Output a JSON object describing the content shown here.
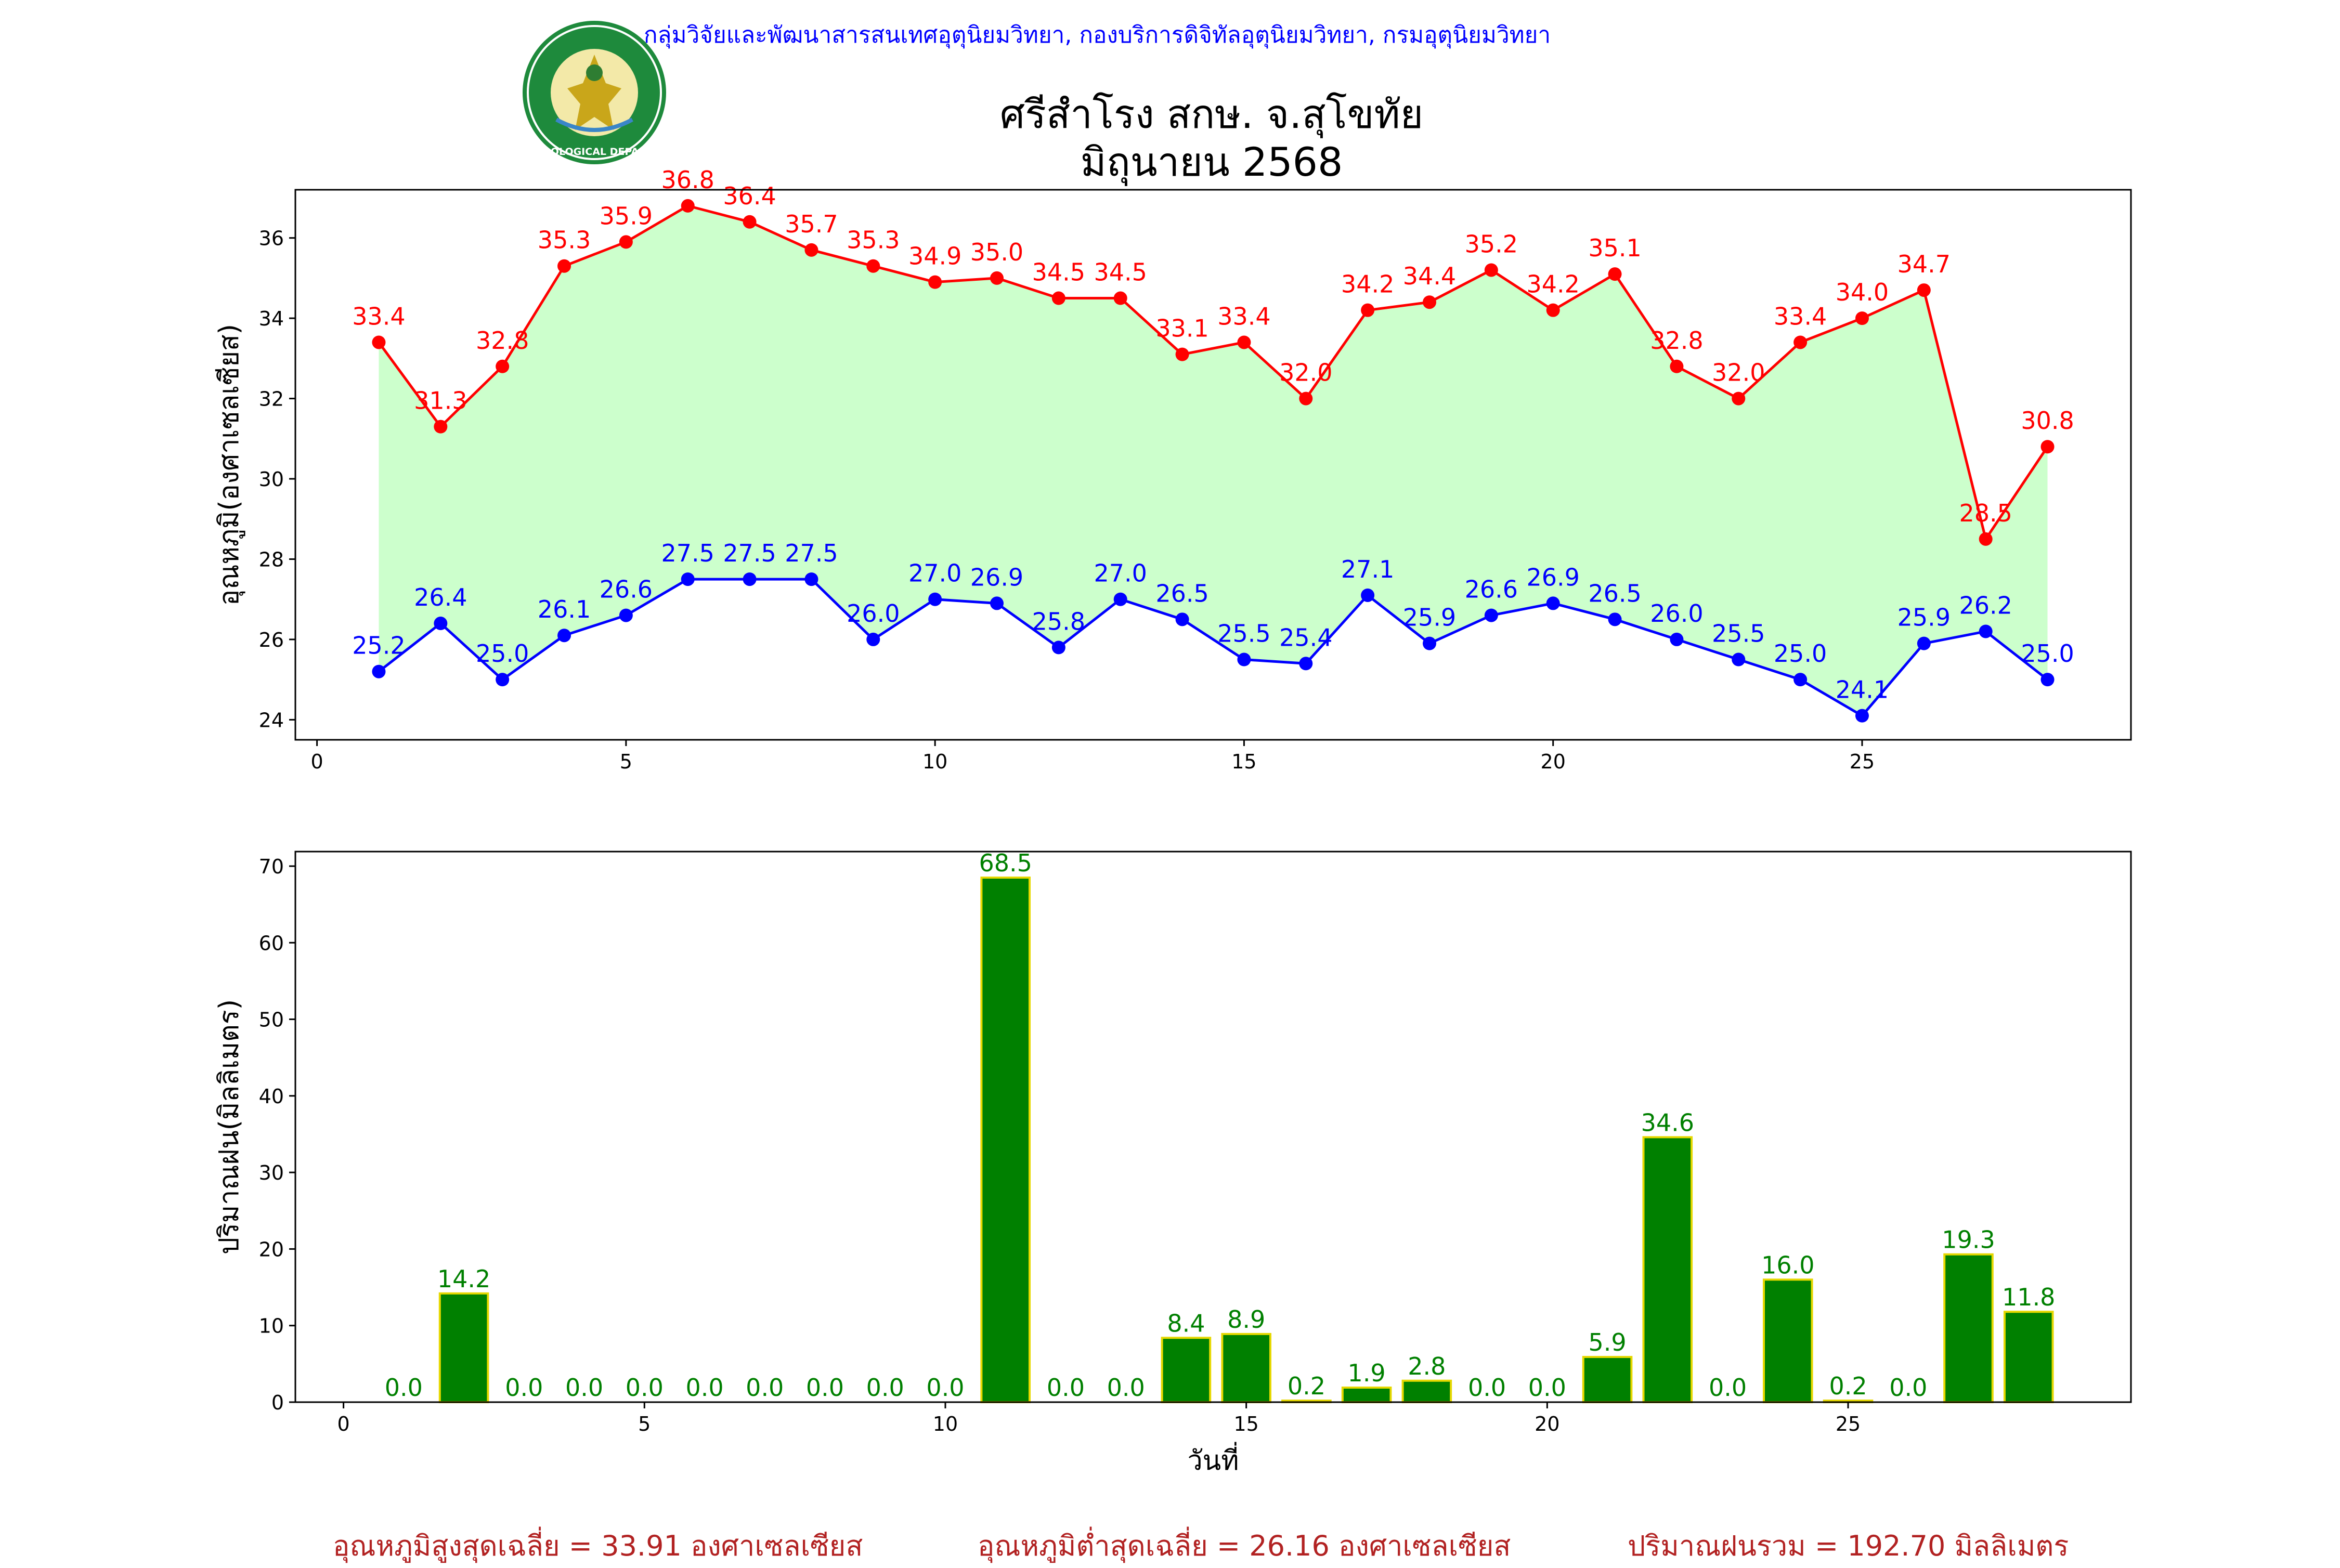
{
  "header": {
    "organization": "กลุ่มวิจัยและพัฒนาสารสนเทศอุตุนิยมวิทยา, กองบริการดิจิทัลอุตุนิยมวิทยา, กรมอุตุนิยมวิทยา",
    "title_line1": "ศรีสำโรง สกษ. จ.สุโขทัย",
    "title_line2": "มิถุนายน 2568",
    "logo_text": "METEOROLOGICAL DEPARTMENT"
  },
  "colors": {
    "max_temp": "#ff0000",
    "min_temp": "#0000ff",
    "temp_fill": "#ccffcc",
    "rain_bar": "#008000",
    "rain_edge": "#e6d800",
    "footer": "#b22222"
  },
  "chart_data": [
    {
      "type": "line",
      "ylabel": "อุณหภูมิ(องศาเซลเซียส)",
      "xlabel": "",
      "xlim": [
        -0.35,
        29.35
      ],
      "ylim": [
        23.5,
        37.2
      ],
      "xticks": [
        0,
        5,
        10,
        15,
        20,
        25
      ],
      "yticks": [
        24,
        26,
        28,
        30,
        32,
        34,
        36
      ],
      "fill_between": true,
      "x": [
        1,
        2,
        3,
        4,
        5,
        6,
        7,
        8,
        9,
        10,
        11,
        12,
        13,
        14,
        15,
        16,
        17,
        18,
        19,
        20,
        21,
        22,
        23,
        24,
        25,
        26,
        27,
        28
      ],
      "series": [
        {
          "key": "max",
          "values": [
            33.4,
            31.3,
            32.8,
            35.3,
            35.9,
            36.8,
            36.4,
            35.7,
            35.3,
            34.9,
            35.0,
            34.5,
            34.5,
            33.1,
            33.4,
            32.0,
            34.2,
            34.4,
            35.2,
            34.2,
            35.1,
            32.8,
            32.0,
            33.4,
            34.0,
            34.7,
            28.5,
            30.8
          ],
          "labels": [
            "33.4",
            "31.3",
            "32.8",
            "35.3",
            "35.9",
            "36.8",
            "36.4",
            "35.7",
            "35.3",
            "34.9",
            "35.0",
            "34.5",
            "34.5",
            "33.1",
            "33.4",
            "32.0",
            "34.2",
            "34.4",
            "35.2",
            "34.2",
            "35.1",
            "32.8",
            "32.0",
            "33.4",
            "34.0",
            "34.7",
            "28.5",
            "30.8"
          ]
        },
        {
          "key": "min",
          "values": [
            25.2,
            26.4,
            25.0,
            26.1,
            26.6,
            27.5,
            27.5,
            27.5,
            26.0,
            27.0,
            26.9,
            25.8,
            27.0,
            26.5,
            25.5,
            25.4,
            27.1,
            25.9,
            26.6,
            26.9,
            26.5,
            26.0,
            25.5,
            25.0,
            24.1,
            25.9,
            26.2,
            25.0
          ],
          "labels": [
            "25.2",
            "26.4",
            "25.0",
            "26.1",
            "26.6",
            "27.5",
            "27.5",
            "27.5",
            "26.0",
            "27.0",
            "26.9",
            "25.8",
            "27.0",
            "26.5",
            "25.5",
            "25.4",
            "27.1",
            "25.9",
            "26.6",
            "26.9",
            "26.5",
            "26.0",
            "25.5",
            "25.0",
            "24.1",
            "25.9",
            "26.2",
            "25.0"
          ]
        }
      ]
    },
    {
      "type": "bar",
      "ylabel": "ปริมาณฝน(มิลลิเมตร)",
      "xlabel": "วันที่",
      "xlim": [
        -0.8,
        29.7
      ],
      "ylim": [
        0,
        71.9
      ],
      "xticks": [
        0,
        5,
        10,
        15,
        20,
        25
      ],
      "yticks": [
        0,
        10,
        20,
        30,
        40,
        50,
        60,
        70
      ],
      "x": [
        1,
        2,
        3,
        4,
        5,
        6,
        7,
        8,
        9,
        10,
        11,
        12,
        13,
        14,
        15,
        16,
        17,
        18,
        19,
        20,
        21,
        22,
        23,
        24,
        25,
        26,
        27,
        28
      ],
      "values": [
        0.0,
        14.2,
        0.0,
        0.0,
        0.0,
        0.0,
        0.0,
        0.0,
        0.0,
        0.0,
        68.5,
        0.0,
        0.0,
        8.4,
        8.9,
        0.2,
        1.9,
        2.8,
        0.0,
        0.0,
        5.9,
        34.6,
        0.0,
        16.0,
        0.2,
        0.0,
        19.3,
        11.8
      ],
      "labels": [
        "0.0",
        "14.2",
        "0.0",
        "0.0",
        "0.0",
        "0.0",
        "0.0",
        "0.0",
        "0.0",
        "0.0",
        "68.5",
        "0.0",
        "0.0",
        "8.4",
        "8.9",
        "0.2",
        "1.9",
        "2.8",
        "0.0",
        "0.0",
        "5.9",
        "34.6",
        "0.0",
        "16.0",
        "0.2",
        "0.0",
        "19.3",
        "11.8"
      ]
    }
  ],
  "footer": {
    "avg_max": "อุณหภูมิสูงสุดเฉลี่ย = 33.91 องศาเซลเซียส",
    "avg_min": "อุณหภูมิต่ำสุดเฉลี่ย = 26.16 องศาเซลเซียส",
    "total_rain": "ปริมาณฝนรวม = 192.70 มิลลิเมตร"
  }
}
